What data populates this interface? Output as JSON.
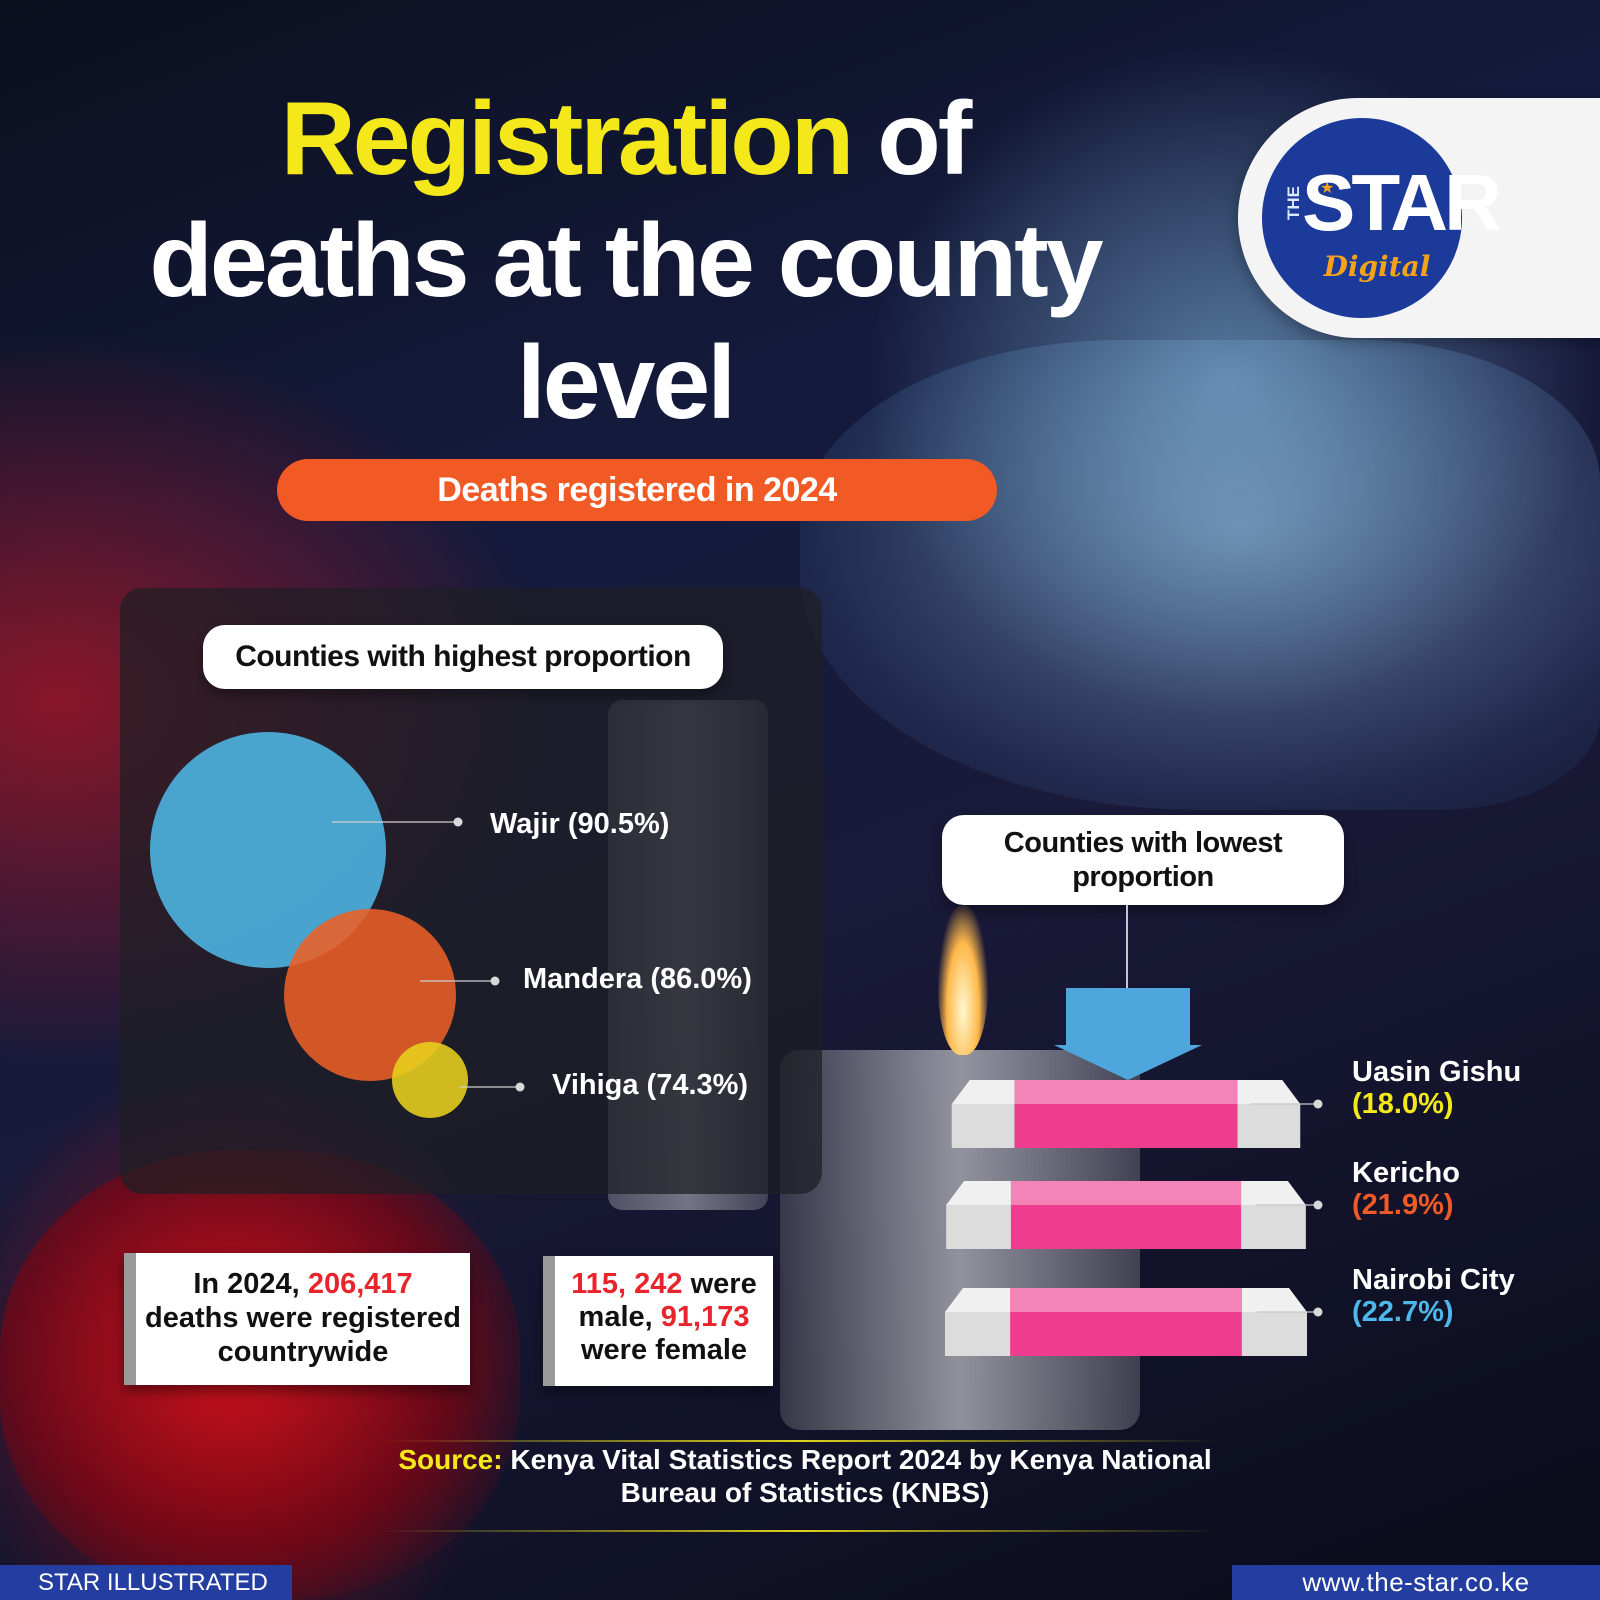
{
  "header": {
    "title_highlight": "Registration",
    "title_line1_rest": " of",
    "title_line2": "deaths at the county",
    "title_line3": "level",
    "subtitle": "Deaths registered in 2024"
  },
  "logo": {
    "the": "THE",
    "star": "STAR",
    "digital": "Digital"
  },
  "panels": {
    "highest_label": "Counties with highest proportion",
    "lowest_label_line1": "Counties with lowest",
    "lowest_label_line2": "proportion"
  },
  "chart_data": [
    {
      "type": "bubble",
      "title": "Counties with highest proportion",
      "unit": "%",
      "categories": [
        "Wajir",
        "Mandera",
        "Vihiga"
      ],
      "values": [
        90.5,
        86.0,
        74.3
      ],
      "labels": [
        "Wajir (90.5%)",
        "Mandera (86.0%)",
        "Vihiga (74.3%)"
      ],
      "colors": [
        "#4cb0dc",
        "#ec6026",
        "#e8d21c"
      ]
    },
    {
      "type": "bar",
      "title": "Counties with lowest proportion",
      "unit": "%",
      "categories": [
        "Uasin Gishu",
        "Kericho",
        "Nairobi City"
      ],
      "values": [
        18.0,
        21.9,
        22.7
      ],
      "value_labels": [
        "(18.0%)",
        "(21.9%)",
        "(22.7%)"
      ],
      "value_colors": [
        "#f4e81a",
        "#f15a24",
        "#4cb8ec"
      ],
      "bar_color": "#ee3d8f"
    }
  ],
  "stats": {
    "total_pre": "In 2024, ",
    "total_value": "206,417",
    "total_post1": "deaths were registered",
    "total_post2": "countrywide",
    "male_value": "115, 242",
    "male_post": " were",
    "male_word": "male, ",
    "female_value": "91,173",
    "female_post": "were female"
  },
  "source": {
    "key": "Source:",
    "line1": " Kenya Vital Statistics Report 2024 by Kenya National",
    "line2": "Bureau of Statistics (KNBS)"
  },
  "footer": {
    "left": "STAR ILLUSTRATED",
    "right": "www.the-star.co.ke"
  }
}
